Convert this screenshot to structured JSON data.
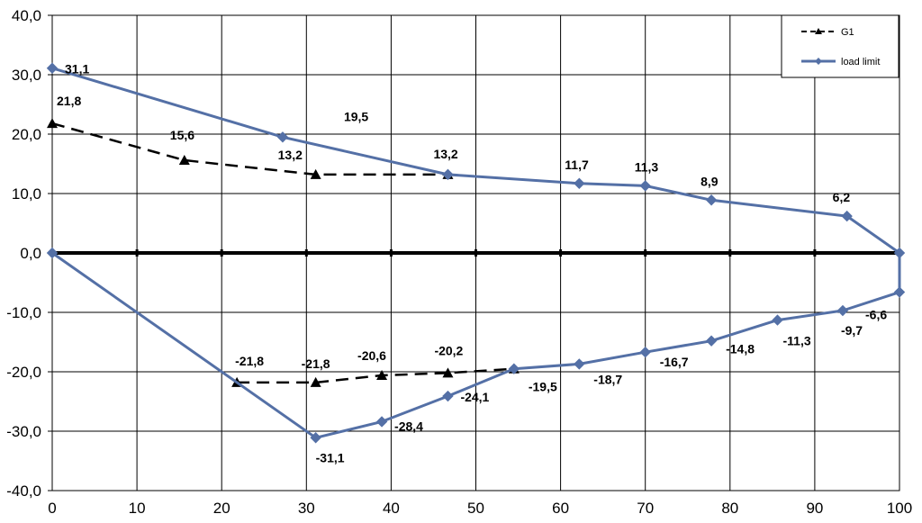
{
  "chart_data": {
    "type": "line",
    "xlim": [
      0,
      100
    ],
    "ylim": [
      -40,
      40
    ],
    "x_ticks": [
      "0",
      "10",
      "20",
      "30",
      "40",
      "50",
      "60",
      "70",
      "80",
      "90",
      "100"
    ],
    "y_ticks": [
      "40,0",
      "30,0",
      "20,0",
      "10,0",
      "0,0",
      "-10,0",
      "-20,0",
      "-30,0",
      "-40,0"
    ],
    "grid": true,
    "legend_position": "top-right",
    "series": [
      {
        "name": "G1",
        "color": "#000000",
        "style": "dashed",
        "marker": "triangle",
        "segments": [
          [
            {
              "x": 0,
              "y": 21.8,
              "label": "21,8"
            },
            {
              "x": 15.6,
              "y": 15.6,
              "label": "15,6"
            },
            {
              "x": 31.1,
              "y": 13.2,
              "label": "13,2"
            },
            {
              "x": 46.7,
              "y": 13.2,
              "label": ""
            }
          ],
          [
            {
              "x": 21.8,
              "y": -21.8,
              "label": "-21,8"
            },
            {
              "x": 31.1,
              "y": -21.8,
              "label": "-21,8"
            },
            {
              "x": 38.9,
              "y": -20.6,
              "label": "-20,6"
            },
            {
              "x": 46.7,
              "y": -20.2,
              "label": "-20,2"
            },
            {
              "x": 54.5,
              "y": -19.5,
              "label": ""
            }
          ]
        ]
      },
      {
        "name": "load limit",
        "color": "#5470a6",
        "style": "solid",
        "marker": "diamond",
        "segments": [
          [
            {
              "x": 0,
              "y": 31.1,
              "label": "31,1"
            },
            {
              "x": 27.2,
              "y": 19.5,
              "label": "19,5"
            },
            {
              "x": 46.7,
              "y": 13.2,
              "label": "13,2"
            },
            {
              "x": 62.2,
              "y": 11.7,
              "label": "11,7"
            },
            {
              "x": 70,
              "y": 11.3,
              "label": "11,3"
            },
            {
              "x": 77.8,
              "y": 8.9,
              "label": "8,9"
            },
            {
              "x": 93.8,
              "y": 6.2,
              "label": "6,2"
            },
            {
              "x": 100,
              "y": 0,
              "label": ""
            },
            {
              "x": 100,
              "y": -6.6,
              "label": "-6,6"
            },
            {
              "x": 93.3,
              "y": -9.7,
              "label": "-9,7"
            },
            {
              "x": 85.6,
              "y": -11.3,
              "label": "-11,3"
            },
            {
              "x": 77.8,
              "y": -14.8,
              "label": "-14,8"
            },
            {
              "x": 70,
              "y": -16.7,
              "label": "-16,7"
            },
            {
              "x": 62.2,
              "y": -18.7,
              "label": "-18,7"
            },
            {
              "x": 54.5,
              "y": -19.5,
              "label": "-19,5"
            },
            {
              "x": 46.7,
              "y": -24.1,
              "label": "-24,1"
            },
            {
              "x": 38.9,
              "y": -28.4,
              "label": "-28,4"
            },
            {
              "x": 31.1,
              "y": -31.1,
              "label": "-31,1"
            },
            {
              "x": 0,
              "y": 0,
              "label": ""
            }
          ]
        ]
      }
    ]
  }
}
